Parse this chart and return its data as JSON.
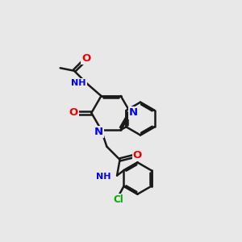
{
  "bg_color": "#e8e8e8",
  "bond_color": "#1a1a1a",
  "bond_width": 1.8,
  "atom_colors": {
    "N": "#0000ee",
    "O": "#ee0000",
    "H": "#4a8a6a",
    "Cl": "#00aa00"
  },
  "font_size": 8.5,
  "fig_width": 3.0,
  "fig_height": 3.0,
  "dpi": 100
}
